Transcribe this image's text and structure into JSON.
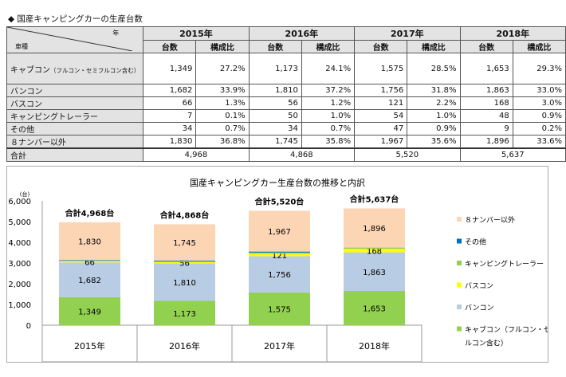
{
  "table_title": "◆ 国産キャンピングカーの生産台数",
  "table": {
    "corner_year": "年",
    "corner_type": "車種",
    "years": [
      "2015年",
      "2016年",
      "2017年",
      "2018年"
    ],
    "sub_headers": [
      "台数",
      "構成比"
    ],
    "rows": [
      {
        "label": "キャブコン",
        "note": "（フルコン・セミフルコン含む）",
        "values": [
          "1,349",
          "27.2%",
          "1,173",
          "24.1%",
          "1,575",
          "28.5%",
          "1,653",
          "29.3%"
        ]
      },
      {
        "label": "バンコン",
        "values": [
          "1,682",
          "33.9%",
          "1,810",
          "37.2%",
          "1,756",
          "31.8%",
          "1,863",
          "33.0%"
        ]
      },
      {
        "label": "バスコン",
        "values": [
          "66",
          "1.3%",
          "56",
          "1.2%",
          "121",
          "2.2%",
          "168",
          "3.0%"
        ]
      },
      {
        "label": "キャンピングトレーラー",
        "values": [
          "7",
          "0.1%",
          "50",
          "1.0%",
          "54",
          "1.0%",
          "48",
          "0.9%"
        ]
      },
      {
        "label": "その他",
        "values": [
          "34",
          "0.7%",
          "34",
          "0.7%",
          "47",
          "0.9%",
          "9",
          "0.2%"
        ]
      },
      {
        "label": "８ナンバー以外",
        "values": [
          "1,830",
          "36.8%",
          "1,745",
          "35.8%",
          "1,967",
          "35.6%",
          "1,896",
          "33.6%"
        ]
      }
    ],
    "total": {
      "label": "合計",
      "values": [
        "4,968",
        "4,868",
        "5,520",
        "5,637"
      ]
    }
  },
  "chart_data": {
    "type": "bar",
    "stacked": true,
    "title": "国産キャンピングカー生産台数の推移と内訳",
    "ylabel": "(台)",
    "ylim": [
      0,
      6000
    ],
    "yticks": [
      0,
      1000,
      2000,
      3000,
      4000,
      5000,
      6000
    ],
    "ytick_labels": [
      "0",
      "1,000",
      "2,000",
      "3,000",
      "4,000",
      "5,000",
      "6,000"
    ],
    "categories": [
      "2015年",
      "2016年",
      "2017年",
      "2018年"
    ],
    "totals_labels": [
      "合計4,968台",
      "合計4,868台",
      "合計5,520台",
      "合計5,637台"
    ],
    "series": [
      {
        "name": "キャブコン（フルコン・セミフルコン含む）",
        "legend_lines": [
          "キャブコン（フルコン・セミフ",
          "ルコン含む）"
        ],
        "color": "#92d050",
        "values": [
          1349,
          1173,
          1575,
          1653
        ],
        "labels": [
          "1,349",
          "1,173",
          "1,575",
          "1,653"
        ]
      },
      {
        "name": "バンコン",
        "color": "#b8cce4",
        "values": [
          1682,
          1810,
          1756,
          1863
        ],
        "labels": [
          "1,682",
          "1,810",
          "1,756",
          "1,863"
        ]
      },
      {
        "name": "バスコン",
        "color": "#ffff00",
        "values": [
          66,
          56,
          121,
          168
        ],
        "labels": [
          "66",
          "56",
          "121",
          "168"
        ]
      },
      {
        "name": "キャンピングトレーラー",
        "color": "#92d050",
        "values": [
          7,
          50,
          54,
          48
        ]
      },
      {
        "name": "その他",
        "color": "#0070c0",
        "values": [
          34,
          34,
          47,
          9
        ]
      },
      {
        "name": "８ナンバー以外",
        "color": "#fcd5b4",
        "values": [
          1830,
          1745,
          1967,
          1896
        ],
        "labels": [
          "1,830",
          "1,745",
          "1,967",
          "1,896"
        ]
      }
    ],
    "legend": "right"
  }
}
